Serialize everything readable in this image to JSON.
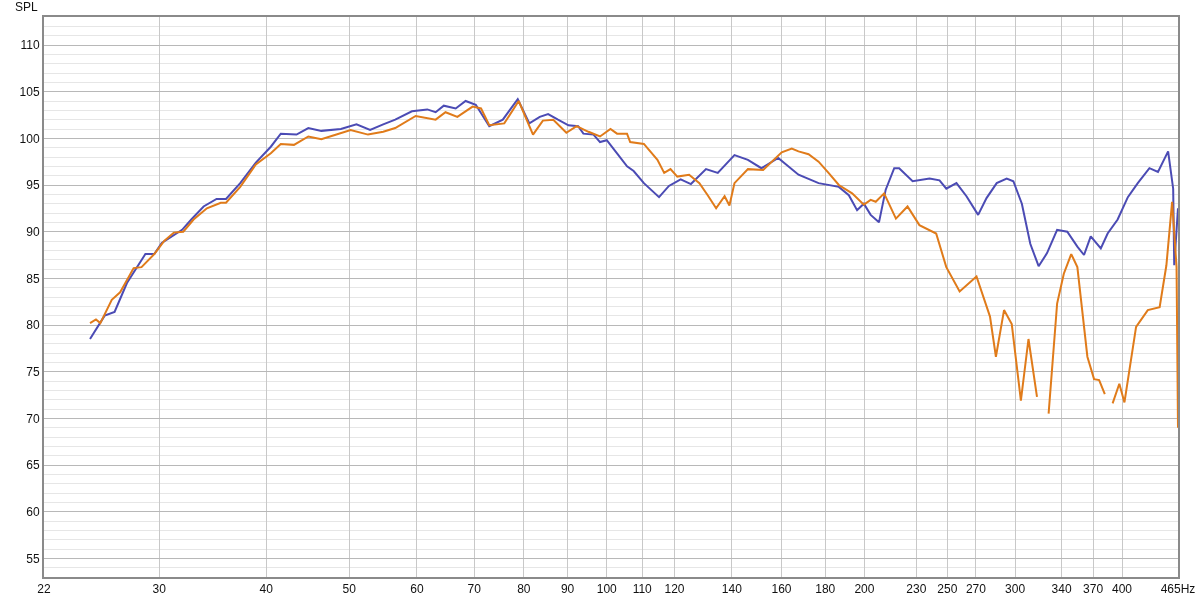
{
  "chart_data": {
    "type": "line",
    "ylabel": "SPL",
    "log": "x",
    "grid": true,
    "marker": "none",
    "line_style": "solid",
    "xlim": [
      22,
      465
    ],
    "xticks": [
      22,
      30,
      40,
      50,
      60,
      70,
      80,
      90,
      100,
      110,
      120,
      140,
      160,
      180,
      200,
      230,
      250,
      270,
      300,
      340,
      370,
      400,
      {
        "value": 465,
        "label": "465Hz"
      }
    ],
    "ylim": [
      53,
      113
    ],
    "yticks": [
      55,
      60,
      65,
      70,
      75,
      80,
      85,
      90,
      95,
      100,
      105,
      110
    ],
    "series": [
      {
        "color": "#4b4bb4",
        "x": [
          24.9,
          25.9,
          26.6,
          27.5,
          28.9,
          29.6,
          30.2,
          31.9,
          32.7,
          33.8,
          35.0,
          35.9,
          37.3,
          38.9,
          40.5,
          41.6,
          43.4,
          44.8,
          46.4,
          48.9,
          51.0,
          52.9,
          54.8,
          56.6,
          59.2,
          61.7,
          63.1,
          64.5,
          66.6,
          68.4,
          70.3,
          72.9,
          75.6,
          78.7,
          81.2,
          83.5,
          85.4,
          87.7,
          90.2,
          92.6,
          93.9,
          96.5,
          98.2,
          100.0,
          102.8,
          105.6,
          107.5,
          110.5,
          115.1,
          118.2,
          122.0,
          125.4,
          130.6,
          134.8,
          141.0,
          146.2,
          151.6,
          158.6,
          167.5,
          176.8,
          186.7,
          191.8,
          196.1,
          199.7,
          203.4,
          208.0,
          211.8,
          216.7,
          219.6,
          227.7,
          238.3,
          244.8,
          249.3,
          256.2,
          263.2,
          271.6,
          277.8,
          285.5,
          293.3,
          298.6,
          305.5,
          312.5,
          319.6,
          326.9,
          335.9,
          345.2,
          354.7,
          361.1,
          367.7,
          377.8,
          384.8,
          395.3,
          406.3,
          417.3,
          430.6,
          440.6,
          452.8,
          459.0,
          460.3,
          465
        ],
        "values": [
          78.5,
          81.0,
          81.4,
          84.5,
          87.6,
          87.6,
          88.8,
          90.2,
          91.3,
          92.7,
          93.5,
          93.5,
          95.2,
          97.4,
          99.1,
          100.5,
          100.4,
          101.1,
          100.8,
          101.0,
          101.5,
          100.9,
          101.5,
          102.0,
          102.9,
          103.1,
          102.8,
          103.5,
          103.2,
          104.0,
          103.6,
          101.3,
          102.0,
          104.2,
          101.6,
          102.3,
          102.6,
          102.0,
          101.4,
          101.3,
          100.5,
          100.4,
          99.6,
          99.8,
          98.4,
          97.0,
          96.5,
          95.2,
          93.7,
          94.9,
          95.6,
          95.1,
          96.7,
          96.3,
          98.2,
          97.7,
          96.8,
          97.9,
          96.1,
          95.2,
          94.8,
          93.9,
          92.3,
          93.0,
          91.8,
          91.0,
          94.5,
          96.8,
          96.8,
          95.4,
          95.7,
          95.5,
          94.6,
          95.2,
          93.8,
          91.8,
          93.6,
          95.2,
          95.7,
          95.4,
          93.0,
          88.7,
          86.3,
          87.7,
          90.2,
          90.0,
          88.4,
          87.5,
          89.5,
          88.2,
          89.8,
          91.3,
          93.7,
          95.2,
          96.8,
          96.4,
          98.6,
          94.6,
          86.4,
          92.5
        ]
      },
      {
        "color": "#e07b1a",
        "x": [
          24.9,
          25.3,
          25.6,
          26.4,
          27.0,
          28.0,
          28.6,
          29.6,
          30.4,
          31.2,
          32.0,
          32.9,
          34.1,
          35.4,
          35.9,
          37.3,
          38.9,
          40.5,
          41.6,
          43.1,
          44.8,
          46.4,
          47.9,
          50.2,
          52.6,
          54.8,
          56.6,
          59.8,
          63.1,
          64.8,
          66.9,
          69.7,
          71.3,
          72.9,
          75.9,
          78.9,
          82.0,
          84.2,
          86.6,
          89.7,
          92.2,
          95.2,
          98.2,
          101.0,
          102.8,
          105.6,
          106.5,
          110.5,
          114.6,
          116.7,
          118.7,
          120.9,
          124.8,
          128.3,
          131.2,
          134.2,
          137.3,
          139.1,
          141.0,
          146.2,
          152.3,
          160.1,
          164.5,
          167.5,
          172.1,
          176.8,
          181.6,
          186.7,
          193.5,
          199.7,
          203.4,
          206.2,
          210.9,
          217.7,
          224.6,
          231.9,
          242.6,
          249.3,
          258.4,
          270.4,
          280.4,
          284.9,
          291.2,
          297.3,
          304.7,
          311.0,
          318.2,
          323.4,
          328.3,
          335.9,
          342.0,
          348.9,
          354.7,
          364.4,
          371.0,
          376.1,
          381.9,
          385.4,
          390.0,
          397.1,
          402.6,
          415.4,
          428.7,
          442.6,
          450.7,
          457.7,
          463.2,
          465
        ],
        "values": [
          80.2,
          80.6,
          80.2,
          82.7,
          83.5,
          86.1,
          86.2,
          87.6,
          89.0,
          89.9,
          90.0,
          91.3,
          92.5,
          93.1,
          93.1,
          94.8,
          97.2,
          98.4,
          99.4,
          99.3,
          100.2,
          99.9,
          100.3,
          100.9,
          100.4,
          100.7,
          101.1,
          102.4,
          102.0,
          102.8,
          102.3,
          103.4,
          103.2,
          101.4,
          101.6,
          104.0,
          100.4,
          101.9,
          102.0,
          100.6,
          101.3,
          100.7,
          100.2,
          101.0,
          100.5,
          100.5,
          99.6,
          99.4,
          97.7,
          96.3,
          96.7,
          95.9,
          96.1,
          95.2,
          93.9,
          92.5,
          93.8,
          92.8,
          95.2,
          96.7,
          96.6,
          98.5,
          98.9,
          98.6,
          98.3,
          97.5,
          96.3,
          95.0,
          94.1,
          92.9,
          93.4,
          93.2,
          94.1,
          91.4,
          92.7,
          90.7,
          89.8,
          86.2,
          83.6,
          85.2,
          80.9,
          76.6,
          81.6,
          80.1,
          71.9,
          78.5,
          72.3,
          null,
          70.5,
          82.3,
          85.5,
          87.6,
          86.2,
          76.6,
          74.2,
          74.1,
          72.6,
          null,
          71.6,
          73.7,
          71.7,
          79.8,
          81.6,
          81.9,
          86.4,
          93.2,
          86.2,
          69.0
        ]
      }
    ]
  }
}
